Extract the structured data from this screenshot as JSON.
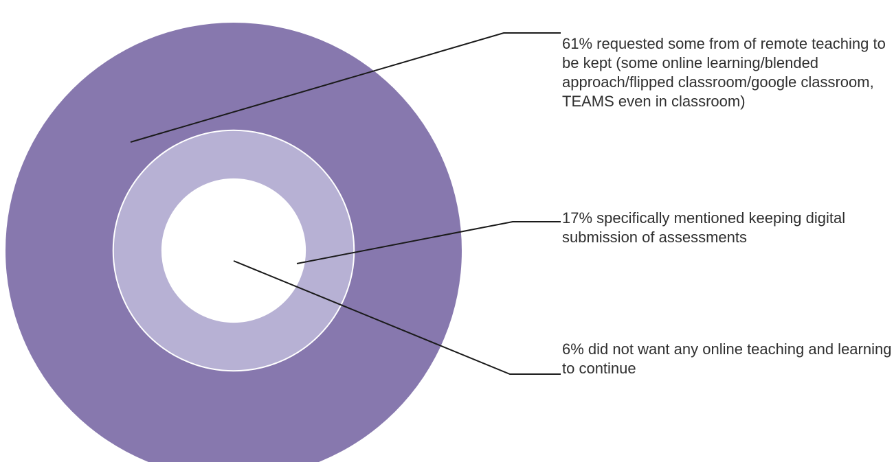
{
  "chart_data": {
    "type": "pie",
    "title": "",
    "layout": "nested-circles",
    "items": [
      {
        "value": 61,
        "unit": "%",
        "label": "61% requested some from of remote teaching to be kept (some online learning/blended approach/flipped classroom/google classroom, TEAMS even in classroom)",
        "color": "#8778ae"
      },
      {
        "value": 17,
        "unit": "%",
        "label": "17% specifically mentioned keeping digital submission of assessments",
        "color": "#b7b1d4"
      },
      {
        "value": 6,
        "unit": "%",
        "label": "6% did not want any online teaching and learning to continue",
        "color": "#ffffff"
      }
    ],
    "leader_line_color": "#1a1a1a",
    "ring_stroke_color": "#ffffff"
  }
}
